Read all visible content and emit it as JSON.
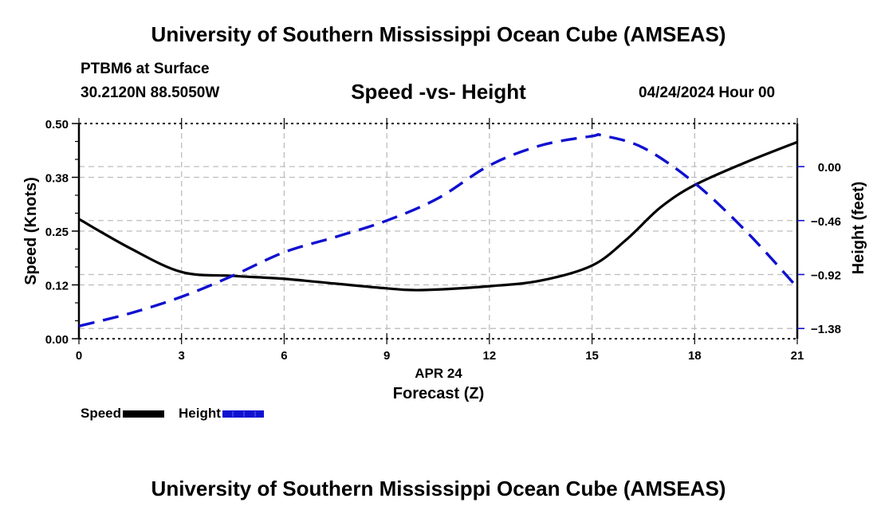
{
  "header": {
    "title": "University of Southern Mississippi Ocean Cube (AMSEAS)",
    "station": "PTBM6 at Surface",
    "coordinates": "30.2120N  88.5050W",
    "datetime": "04/24/2024 Hour 00"
  },
  "footer": {
    "title": "University of Southern Mississippi Ocean Cube (AMSEAS)"
  },
  "legend": [
    {
      "label": "Speed",
      "color": "#000000",
      "style": "solid"
    },
    {
      "label": "Height",
      "color": "#1010d0",
      "style": "dashed"
    }
  ],
  "chart_data": {
    "type": "line",
    "title": "Speed -vs- Height",
    "xlabel": "Forecast (Z)",
    "xlabel_date": "APR 24",
    "xlim": [
      0,
      21
    ],
    "x_ticks": [
      0,
      3,
      6,
      9,
      12,
      15,
      18,
      21
    ],
    "y_left": {
      "label": "Speed (Knots)",
      "ylim": [
        0,
        0.5
      ],
      "ticks": [
        0.0,
        0.125,
        0.25,
        0.375,
        0.5
      ],
      "tick_labels": [
        "0.00",
        "0.12",
        "0.25",
        "0.38",
        "0.50"
      ]
    },
    "y_right": {
      "label": "Height (feet)",
      "ylim": [
        -1.467,
        0.367
      ],
      "ticks": [
        0.0,
        -0.46,
        -0.92,
        -1.38
      ],
      "tick_labels": [
        "0.00",
        "−0.46",
        "−0.92",
        "−1.38"
      ],
      "tick_color": "#1010d0"
    },
    "grid": true,
    "legend_position": "bottom-left",
    "series": [
      {
        "name": "Speed",
        "axis": "left",
        "color": "#000000",
        "style": "solid",
        "x": [
          0,
          1.5,
          3,
          4.5,
          6,
          7.5,
          9,
          10,
          12,
          13.5,
          15,
          16,
          17,
          18,
          19.5,
          21
        ],
        "values": [
          0.278,
          0.21,
          0.155,
          0.146,
          0.139,
          0.128,
          0.117,
          0.113,
          0.122,
          0.135,
          0.17,
          0.23,
          0.305,
          0.357,
          0.41,
          0.457
        ]
      },
      {
        "name": "Height",
        "axis": "right",
        "color": "#1010d0",
        "style": "dashed",
        "x": [
          0,
          1.5,
          3,
          4.5,
          6,
          7.5,
          9,
          10.5,
          12,
          13.5,
          15,
          15.3,
          16.5,
          18,
          19.5,
          21
        ],
        "values": [
          -1.36,
          -1.25,
          -1.11,
          -0.93,
          -0.73,
          -0.6,
          -0.46,
          -0.27,
          0.01,
          0.18,
          0.26,
          0.265,
          0.16,
          -0.14,
          -0.55,
          -1.03
        ]
      }
    ]
  }
}
